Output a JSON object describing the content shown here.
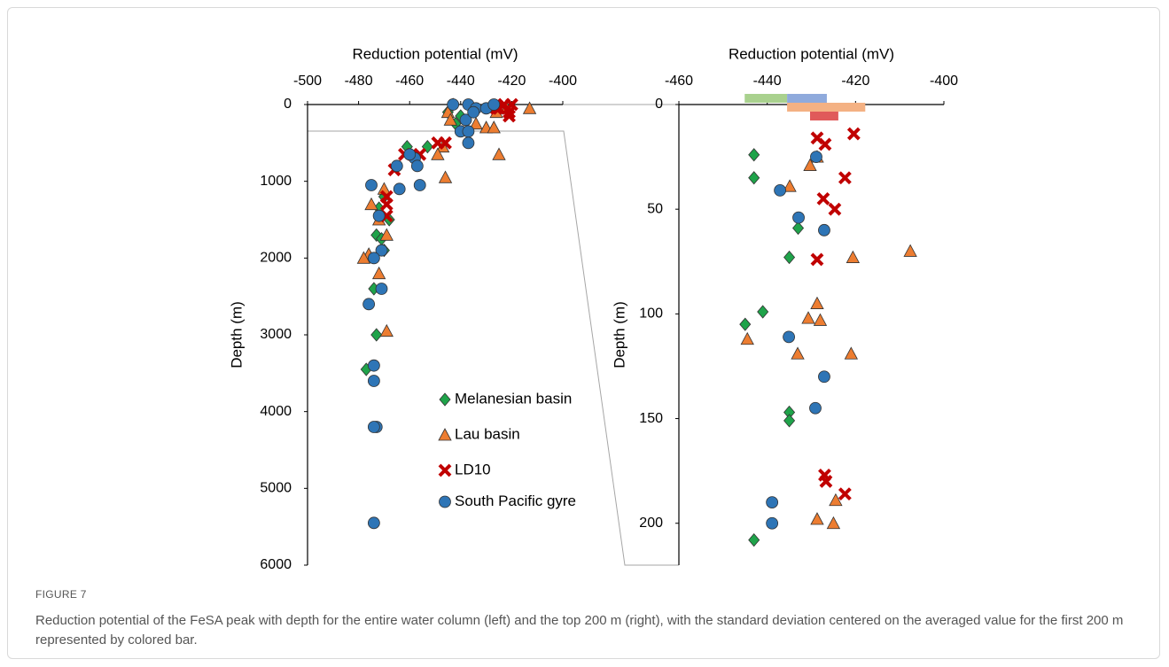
{
  "chart_data": [
    {
      "type": "scatter",
      "xlabel": "Reduction potential (mV)",
      "ylabel": "Depth (m)",
      "xlim": [
        -500,
        -400
      ],
      "xticks": [
        -500,
        -480,
        -460,
        -440,
        -420,
        -400
      ],
      "ylim": [
        0,
        6000
      ],
      "yticks": [
        0,
        1000,
        2000,
        3000,
        4000,
        5000,
        6000
      ],
      "y_inverted": true,
      "legend": "lower right",
      "series": [
        {
          "name": "Melanesian basin",
          "color": "#1fa34a",
          "marker": "diamond",
          "x": [
            -443,
            -445,
            -442,
            -440,
            -461,
            -453,
            -470,
            -472,
            -468,
            -473,
            -471,
            -470,
            -474,
            -473,
            -477
          ],
          "values": [
            0,
            100,
            250,
            150,
            550,
            550,
            1200,
            1350,
            1500,
            1700,
            1750,
            1900,
            2400,
            3000,
            3450
          ]
        },
        {
          "name": "Lau basin",
          "color": "#ed7d31",
          "marker": "triangle",
          "x": [
            -445,
            -444,
            -430,
            -427,
            -413,
            -422,
            -425,
            -447,
            -449,
            -446,
            -470,
            -475,
            -472,
            -469,
            -476,
            -478,
            -472,
            -469,
            -434,
            -426
          ],
          "values": [
            100,
            200,
            300,
            300,
            50,
            50,
            650,
            550,
            650,
            950,
            1100,
            1300,
            1500,
            1700,
            1950,
            2000,
            2200,
            2950,
            250,
            100
          ]
        },
        {
          "name": "LD10",
          "color": "#c00000",
          "marker": "cross",
          "x": [
            -449,
            -446,
            -462,
            -456,
            -466,
            -469,
            -469,
            -469,
            -425,
            -421,
            -420,
            -423,
            -426,
            -421
          ],
          "values": [
            500,
            500,
            650,
            650,
            850,
            1200,
            1300,
            1450,
            50,
            100,
            0,
            0,
            50,
            150
          ]
        },
        {
          "name": "South Pacific gyre",
          "color": "#2e75b6",
          "marker": "circle",
          "x": [
            -443,
            -437,
            -434,
            -430,
            -427,
            -438,
            -440,
            -437,
            -437,
            -458,
            -460,
            -457,
            -465,
            -464,
            -456,
            -475,
            -472,
            -471,
            -474,
            -471,
            -476,
            -474,
            -474,
            -473,
            -474,
            -474,
            -435
          ],
          "values": [
            0,
            0,
            50,
            50,
            0,
            200,
            350,
            350,
            500,
            700,
            650,
            800,
            800,
            1100,
            1050,
            1050,
            1450,
            1900,
            2000,
            2400,
            2600,
            3400,
            3600,
            4200,
            4200,
            5450,
            100
          ]
        }
      ]
    },
    {
      "type": "scatter",
      "xlabel": "Reduction potential (mV)",
      "ylabel": "Depth (m)",
      "xlim": [
        -460,
        -400
      ],
      "xticks": [
        -460,
        -440,
        -420,
        -400
      ],
      "ylim": [
        0,
        220
      ],
      "yticks": [
        0,
        50,
        100,
        150,
        200
      ],
      "y_inverted": true,
      "series": [
        {
          "name": "Melanesian basin",
          "color": "#1fa34a",
          "marker": "diamond",
          "std_color": "#a9d18e",
          "std_range": [
            -445.1,
            -435.5
          ],
          "x": [
            -443,
            -443,
            -433,
            -435,
            -441,
            -445,
            -435,
            -435,
            -443
          ],
          "values": [
            24,
            35,
            59,
            73,
            99,
            105,
            147,
            151,
            208
          ]
        },
        {
          "name": "Lau basin",
          "color": "#ed7d31",
          "marker": "triangle",
          "std_color": "#f4b183",
          "std_range": [
            -435.5,
            -417.8
          ],
          "x": [
            -428.7,
            -430.3,
            -434.9,
            -407.6,
            -420.6,
            -428.7,
            -428,
            -430.7,
            -444.5,
            -433.1,
            -421,
            -424.5,
            -428.7,
            -425
          ],
          "values": [
            25,
            29,
            39,
            70,
            73,
            95,
            103,
            102,
            112,
            119,
            119,
            189,
            198,
            200
          ]
        },
        {
          "name": "LD10",
          "color": "#c00000",
          "marker": "cross",
          "std_color": "#e05a5a",
          "std_range": [
            -430.3,
            -423.9
          ],
          "x": [
            -428.7,
            -426.9,
            -420.4,
            -422.4,
            -427.3,
            -424.7,
            -428.7,
            -427,
            -426.7,
            -422.4
          ],
          "values": [
            16,
            19,
            14,
            35,
            45,
            50,
            74,
            177,
            180,
            186
          ]
        },
        {
          "name": "South Pacific gyre",
          "color": "#2e75b6",
          "marker": "circle",
          "std_color": "#8faadc",
          "std_range": [
            -435.5,
            -426.5
          ],
          "x": [
            -428.9,
            -437.1,
            -432.9,
            -427.1,
            -435.1,
            -427.1,
            -429.1,
            -438.9,
            -438.9
          ],
          "values": [
            25,
            41,
            54,
            60,
            111,
            130,
            145,
            190,
            200
          ]
        }
      ]
    }
  ],
  "figure": {
    "label": "FIGURE 7",
    "caption": "Reduction potential of the FeSA peak with depth for the entire water column (left) and the top 200 m (right), with the standard deviation centered on the averaged value for the first 200 m represented by colored bar."
  }
}
